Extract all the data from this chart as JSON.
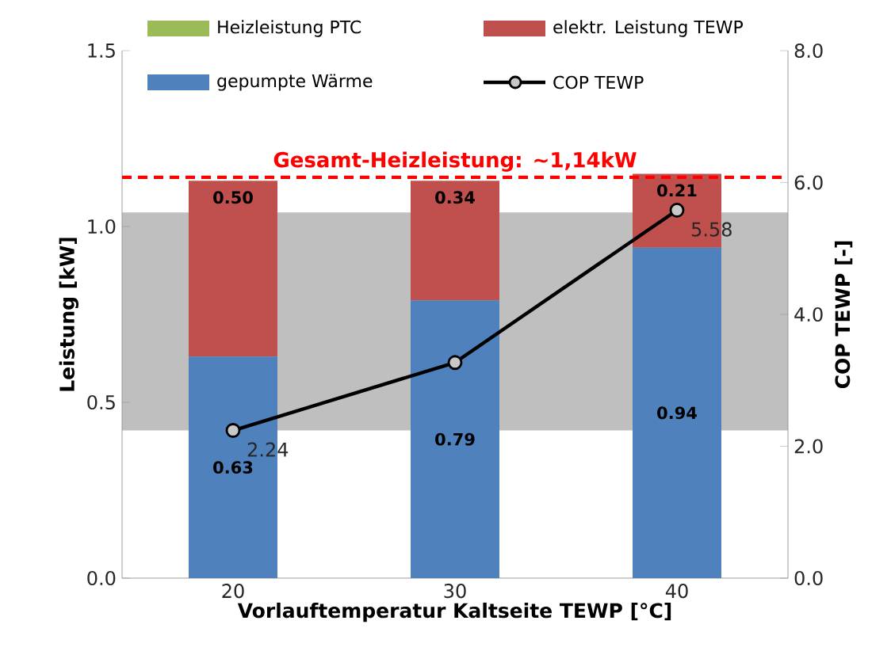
{
  "chart_data": {
    "type": "bar",
    "stacked": true,
    "legend": "top",
    "xlabel": "Vorlauftemperatur Kaltseite TEWP [°C]",
    "ylabel": "Leistung [kW]",
    "y2label": "COP TEWP [-]",
    "categories": [
      "20",
      "30",
      "40"
    ],
    "series": [
      {
        "name": "gepumpte Wärme",
        "color": "#4f81bd",
        "values": [
          0.63,
          0.79,
          0.94
        ],
        "value_labels": [
          "0.63",
          "0.79",
          "0.94"
        ]
      },
      {
        "name": "elektr. Leistung TEWP",
        "color": "#c0504d",
        "values": [
          0.5,
          0.34,
          0.21
        ],
        "value_labels": [
          "0.50",
          "0.34",
          "0.21"
        ]
      },
      {
        "name": "Heizleistung PTC",
        "color": "#9bbb59",
        "values": [
          0,
          0,
          0
        ]
      },
      {
        "name": "COP TEWP",
        "type": "line",
        "axis": "y2",
        "color": "#000000",
        "marker": "circle",
        "values": [
          2.24,
          3.27,
          5.58
        ],
        "value_labels": [
          "2.24",
          null,
          "5.58"
        ]
      }
    ],
    "ylim": [
      0,
      1.5
    ],
    "yticks": [
      {
        "value": 0,
        "label": "0.0"
      },
      {
        "value": 0.5,
        "label": "0.5"
      },
      {
        "value": 1,
        "label": "1.0"
      },
      {
        "value": 1.5,
        "label": "1.5"
      }
    ],
    "y2lim": [
      0,
      8
    ],
    "y2ticks": [
      {
        "value": 0,
        "label": "0.0"
      },
      {
        "value": 2,
        "label": "2.0"
      },
      {
        "value": 4,
        "label": "4.0"
      },
      {
        "value": 6,
        "label": "6.0"
      },
      {
        "value": 8,
        "label": "8.0"
      }
    ],
    "bands": [
      {
        "axis": "y",
        "from": 0.42,
        "to": 1.04,
        "color": "#bfbfbf"
      }
    ],
    "ref_lines": [
      {
        "axis": "y",
        "value": 1.14,
        "label": "Gesamt-Heizleistung: ~1,14kW",
        "color": "#ff0000",
        "line_style": "dashed"
      }
    ]
  }
}
